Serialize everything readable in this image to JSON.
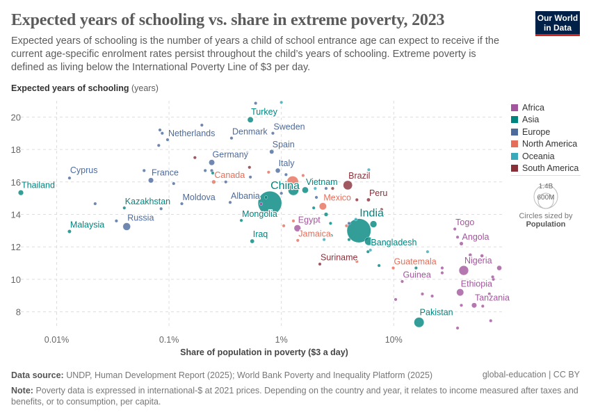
{
  "header": {
    "title": "Expected years of schooling vs. share in extreme poverty, 2023",
    "subtitle": "Expected years of schooling is the number of years a child of school entrance age can expect to receive if the current age-specific enrolment rates persist throughout the child’s years of schooling. Extreme poverty is defined as living below the International Poverty Line of $3 per day.",
    "logo_text": "Our World in Data"
  },
  "legend": {
    "title_prefix": "Circles sized by",
    "title_bold": "Population",
    "size_labels": [
      "1.4B",
      "600M"
    ]
  },
  "footer": {
    "source_label": "Data source:",
    "source": "UNDP, Human Development Report (2025); World Bank Poverty and Inequality Platform (2025)",
    "license": "global-education | CC BY",
    "note_label": "Note:",
    "note": "Poverty data is expressed in international-$ at 2021 prices. Depending on the country and year, it relates to income measured after taxes and benefits, or to consumption, per capita."
  },
  "chart_data": {
    "type": "scatter",
    "title": "Expected years of schooling vs. share in extreme poverty, 2023",
    "xlabel": "Share of population in poverty ($3 a day)",
    "ylabel": "Expected years of schooling",
    "ylabel_unit": "(years)",
    "x_scale": "log",
    "xlim": [
      0.0048,
      92
    ],
    "ylim": [
      7,
      21
    ],
    "x_ticks": [
      {
        "v": 0.01,
        "label": "0.01%"
      },
      {
        "v": 0.1,
        "label": "0.1%"
      },
      {
        "v": 1,
        "label": "1%"
      },
      {
        "v": 10,
        "label": "10%"
      }
    ],
    "y_ticks": [
      8,
      10,
      12,
      14,
      16,
      18,
      20
    ],
    "grid": true,
    "legend_position": "right",
    "regions": [
      {
        "name": "Africa",
        "color": "#a2559c"
      },
      {
        "name": "Asia",
        "color": "#00847e"
      },
      {
        "name": "Europe",
        "color": "#4c6a9c"
      },
      {
        "name": "North America",
        "color": "#e56e5a"
      },
      {
        "name": "Oceania",
        "color": "#38aaba"
      },
      {
        "name": "South America",
        "color": "#883039"
      }
    ],
    "points": [
      {
        "label": "Thailand",
        "region": "Asia",
        "x": 0.0048,
        "y": 15.34,
        "pop": 70
      },
      {
        "label": "Cyprus",
        "region": "Europe",
        "x": 0.013,
        "y": 16.24,
        "pop": 1
      },
      {
        "label": "Malaysia",
        "region": "Asia",
        "x": 0.013,
        "y": 12.95,
        "pop": 35
      },
      {
        "label": "Russia",
        "region": "Europe",
        "x": 0.042,
        "y": 13.25,
        "pop": 145
      },
      {
        "label": "Kazakhstan",
        "region": "Asia",
        "x": 0.04,
        "y": 14.4,
        "pop": 20
      },
      {
        "label": "France",
        "region": "Europe",
        "x": 0.069,
        "y": 16.1,
        "pop": 68
      },
      {
        "label": "Netherlands",
        "region": "Europe",
        "x": 0.097,
        "y": 18.6,
        "pop": 18
      },
      {
        "label": "Moldova",
        "region": "Europe",
        "x": 0.13,
        "y": 14.66,
        "pop": 3
      },
      {
        "label": "Germany",
        "region": "Europe",
        "x": 0.24,
        "y": 17.2,
        "pop": 84
      },
      {
        "label": "Canada",
        "region": "North America",
        "x": 0.25,
        "y": 16.0,
        "pop": 40
      },
      {
        "label": "Turkey",
        "region": "Asia",
        "x": 0.53,
        "y": 19.83,
        "pop": 85
      },
      {
        "label": "Denmark",
        "region": "Europe",
        "x": 0.36,
        "y": 18.7,
        "pop": 6
      },
      {
        "label": "Sweden",
        "region": "Europe",
        "x": 0.84,
        "y": 19.0,
        "pop": 10
      },
      {
        "label": "Spain",
        "region": "Europe",
        "x": 0.82,
        "y": 17.86,
        "pop": 48
      },
      {
        "label": "Italy",
        "region": "Europe",
        "x": 0.93,
        "y": 16.7,
        "pop": 59
      },
      {
        "label": "Albania",
        "region": "Europe",
        "x": 0.35,
        "y": 14.74,
        "pop": 3
      },
      {
        "label": "Mongolia",
        "region": "Asia",
        "x": 0.44,
        "y": 13.63,
        "pop": 3
      },
      {
        "label": "Iraq",
        "region": "Asia",
        "x": 0.55,
        "y": 12.35,
        "pop": 45
      },
      {
        "label": "China",
        "region": "Asia",
        "x": 0.79,
        "y": 14.7,
        "pop": 1410
      },
      {
        "label": "Vietnam",
        "region": "Asia",
        "x": 1.63,
        "y": 15.5,
        "pop": 100
      },
      {
        "label": "Brazil",
        "region": "South America",
        "x": 3.9,
        "y": 15.8,
        "pop": 210
      },
      {
        "label": "Peru",
        "region": "South America",
        "x": 5.96,
        "y": 14.9,
        "pop": 34
      },
      {
        "label": "Mexico",
        "region": "North America",
        "x": 2.34,
        "y": 14.5,
        "pop": 130
      },
      {
        "label": "India",
        "region": "Asia",
        "x": 4.9,
        "y": 13.0,
        "pop": 1440
      },
      {
        "label": "Bangladesh",
        "region": "Asia",
        "x": 6.0,
        "y": 12.35,
        "pop": 175
      },
      {
        "label": "Egypt",
        "region": "Africa",
        "x": 1.39,
        "y": 13.15,
        "pop": 115
      },
      {
        "label": "Jamaica",
        "region": "North America",
        "x": 1.4,
        "y": 12.4,
        "pop": 3
      },
      {
        "label": "Suriname",
        "region": "South America",
        "x": 2.2,
        "y": 10.94,
        "pop": 1
      },
      {
        "label": "Guatemala",
        "region": "North America",
        "x": 9.9,
        "y": 10.7,
        "pop": 18
      },
      {
        "label": "Guinea",
        "region": "Africa",
        "x": 11.9,
        "y": 9.87,
        "pop": 14
      },
      {
        "label": "Togo",
        "region": "Africa",
        "x": 35,
        "y": 13.1,
        "pop": 9
      },
      {
        "label": "Angola",
        "region": "Africa",
        "x": 40,
        "y": 12.2,
        "pop": 37
      },
      {
        "label": "Nigeria",
        "region": "Africa",
        "x": 42,
        "y": 10.55,
        "pop": 230
      },
      {
        "label": "Ethiopia",
        "region": "Africa",
        "x": 39,
        "y": 9.2,
        "pop": 130
      },
      {
        "label": "Tanzania",
        "region": "Africa",
        "x": 52,
        "y": 8.4,
        "pop": 67
      },
      {
        "label": "Pakistan",
        "region": "Asia",
        "x": 16.8,
        "y": 7.35,
        "pop": 250
      },
      {
        "region": "North America",
        "x": 1.26,
        "y": 16.0,
        "pop": 340
      },
      {
        "region": "Asia",
        "x": 1.28,
        "y": 15.5,
        "pop": 280
      },
      {
        "region": "Asia",
        "x": 6.6,
        "y": 13.4,
        "pop": 115
      },
      {
        "region": "Africa",
        "x": 37,
        "y": 12.6,
        "pop": 10
      },
      {
        "region": "Africa",
        "x": 48,
        "y": 11.5,
        "pop": 30
      },
      {
        "region": "Africa",
        "x": 61,
        "y": 11.45,
        "pop": 30
      },
      {
        "region": "Africa",
        "x": 27,
        "y": 10.7,
        "pop": 12
      },
      {
        "region": "Africa",
        "x": 27,
        "y": 10.4,
        "pop": 8
      },
      {
        "region": "Africa",
        "x": 87,
        "y": 10.7,
        "pop": 60
      },
      {
        "region": "Africa",
        "x": 77,
        "y": 10.0,
        "pop": 10
      },
      {
        "region": "Africa",
        "x": 76,
        "y": 10.15,
        "pop": 8
      },
      {
        "region": "Africa",
        "x": 18,
        "y": 9.1,
        "pop": 8
      },
      {
        "region": "Africa",
        "x": 22,
        "y": 8.97,
        "pop": 8
      },
      {
        "region": "Africa",
        "x": 71,
        "y": 9.1,
        "pop": 12
      },
      {
        "region": "Africa",
        "x": 40,
        "y": 8.4,
        "pop": 6
      },
      {
        "region": "Africa",
        "x": 62,
        "y": 8.35,
        "pop": 12
      },
      {
        "region": "Africa",
        "x": 73,
        "y": 7.45,
        "pop": 6
      },
      {
        "region": "Africa",
        "x": 37,
        "y": 7.0,
        "pop": 8
      },
      {
        "region": "Africa",
        "x": 10.4,
        "y": 8.76,
        "pop": 6
      },
      {
        "region": "Africa",
        "x": 0.66,
        "y": 14.65,
        "pop": 3
      },
      {
        "region": "Oceania",
        "x": 20,
        "y": 11.7,
        "pop": 5
      },
      {
        "region": "Asia",
        "x": 7.4,
        "y": 10.85,
        "pop": 5
      },
      {
        "region": "Asia",
        "x": 15.8,
        "y": 10.7,
        "pop": 5
      },
      {
        "region": "Europe",
        "x": 0.59,
        "y": 20.85,
        "pop": 3
      },
      {
        "region": "Oceania",
        "x": 1.0,
        "y": 20.9,
        "pop": 5
      },
      {
        "region": "Europe",
        "x": 0.196,
        "y": 19.5,
        "pop": 3
      },
      {
        "region": "Europe",
        "x": 0.083,
        "y": 19.2,
        "pop": 3
      },
      {
        "region": "Europe",
        "x": 0.087,
        "y": 19.0,
        "pop": 3
      },
      {
        "region": "Europe",
        "x": 0.081,
        "y": 18.25,
        "pop": 3
      },
      {
        "region": "South America",
        "x": 0.17,
        "y": 17.5,
        "pop": 3
      },
      {
        "region": "South America",
        "x": 0.52,
        "y": 16.9,
        "pop": 3
      },
      {
        "region": "Europe",
        "x": 0.5,
        "y": 17.8,
        "pop": 2
      },
      {
        "region": "Europe",
        "x": 0.06,
        "y": 16.7,
        "pop": 3
      },
      {
        "region": "Europe",
        "x": 0.21,
        "y": 16.7,
        "pop": 3
      },
      {
        "region": "Europe",
        "x": 0.24,
        "y": 16.7,
        "pop": 15
      },
      {
        "region": "Asia",
        "x": 0.245,
        "y": 16.55,
        "pop": 3
      },
      {
        "region": "North America",
        "x": 0.77,
        "y": 16.6,
        "pop": 3
      },
      {
        "region": "Europe",
        "x": 1.1,
        "y": 16.45,
        "pop": 3
      },
      {
        "region": "Europe",
        "x": 0.53,
        "y": 16.3,
        "pop": 3
      },
      {
        "region": "Europe",
        "x": 0.32,
        "y": 16.0,
        "pop": 3
      },
      {
        "region": "Europe",
        "x": 0.11,
        "y": 15.9,
        "pop": 3
      },
      {
        "region": "Asia",
        "x": 0.73,
        "y": 15.05,
        "pop": 3
      },
      {
        "region": "Europe",
        "x": 1.0,
        "y": 15.3,
        "pop": 3
      },
      {
        "region": "Europe",
        "x": 0.022,
        "y": 14.66,
        "pop": 3
      },
      {
        "region": "Europe",
        "x": 0.085,
        "y": 14.35,
        "pop": 3
      },
      {
        "region": "Europe",
        "x": 0.034,
        "y": 13.6,
        "pop": 10
      },
      {
        "region": "North America",
        "x": 1.05,
        "y": 13.3,
        "pop": 3
      },
      {
        "region": "North America",
        "x": 1.28,
        "y": 13.6,
        "pop": 3
      },
      {
        "region": "Oceania",
        "x": 2.0,
        "y": 15.6,
        "pop": 3
      },
      {
        "region": "Europe",
        "x": 2.5,
        "y": 15.6,
        "pop": 3
      },
      {
        "region": "South America",
        "x": 2.86,
        "y": 15.6,
        "pop": 3
      },
      {
        "region": "North America",
        "x": 1.56,
        "y": 16.4,
        "pop": 3
      },
      {
        "region": "Oceania",
        "x": 6.0,
        "y": 16.75,
        "pop": 3
      },
      {
        "region": "Europe",
        "x": 2.05,
        "y": 15.05,
        "pop": 3
      },
      {
        "region": "South America",
        "x": 4.7,
        "y": 14.9,
        "pop": 3
      },
      {
        "region": "South America",
        "x": 7.8,
        "y": 14.3,
        "pop": 8
      },
      {
        "region": "Asia",
        "x": 1.94,
        "y": 14.4,
        "pop": 3
      },
      {
        "region": "Asia",
        "x": 2.5,
        "y": 14.0,
        "pop": 40
      },
      {
        "region": "Asia",
        "x": 2.74,
        "y": 13.45,
        "pop": 3
      },
      {
        "region": "Europe",
        "x": 4.0,
        "y": 13.45,
        "pop": 3
      },
      {
        "region": "North America",
        "x": 3.8,
        "y": 13.3,
        "pop": 3
      },
      {
        "region": "Oceania",
        "x": 4.6,
        "y": 13.7,
        "pop": 3
      },
      {
        "region": "Asia",
        "x": 2.78,
        "y": 12.7,
        "pop": 3
      },
      {
        "region": "Oceania",
        "x": 2.1,
        "y": 12.9,
        "pop": 3
      },
      {
        "region": "Oceania",
        "x": 2.4,
        "y": 12.45,
        "pop": 3
      },
      {
        "region": "Asia",
        "x": 4.0,
        "y": 12.45,
        "pop": 8
      },
      {
        "region": "Oceania",
        "x": 6.2,
        "y": 11.8,
        "pop": 3
      },
      {
        "region": "Asia",
        "x": 5.9,
        "y": 11.7,
        "pop": 3
      },
      {
        "region": "North America",
        "x": 4.7,
        "y": 11.1,
        "pop": 3
      }
    ]
  }
}
